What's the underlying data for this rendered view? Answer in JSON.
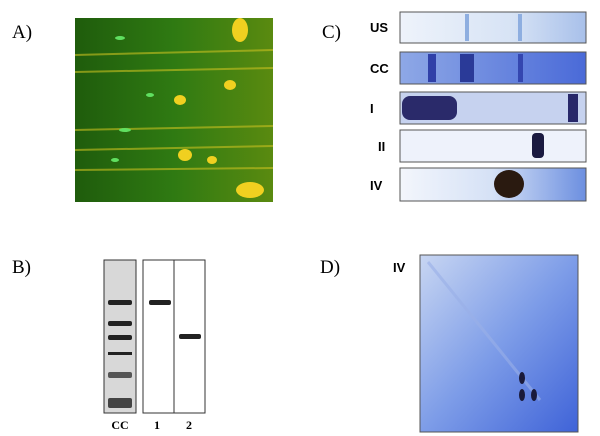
{
  "panel_a": {
    "label": "A)"
  },
  "panel_b": {
    "label": "B)",
    "lanes": [
      "CC",
      "1",
      "2"
    ]
  },
  "panel_c": {
    "label": "C)",
    "strips": [
      "US",
      "CC",
      "I",
      "II",
      "IV"
    ]
  },
  "panel_d": {
    "label": "D)",
    "sample": "IV"
  }
}
